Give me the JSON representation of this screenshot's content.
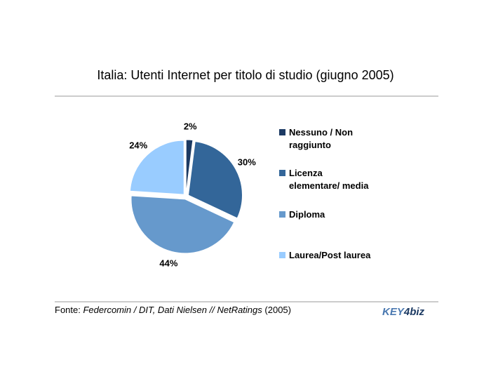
{
  "chart_data": {
    "type": "pie",
    "title": "Italia: Utenti Internet per titolo di studio (giugno 2005)",
    "categories": [
      "Nessuno / Non raggiunto",
      "Licenza elementare/ media",
      "Diploma",
      "Laurea/Post laurea"
    ],
    "values": [
      2,
      30,
      44,
      24
    ],
    "value_labels": [
      "2%",
      "30%",
      "44%",
      "24%"
    ],
    "colors": [
      "#1c3a63",
      "#336699",
      "#6699cc",
      "#99ccff"
    ],
    "legend": "right",
    "source": {
      "prefix": "Fonte:",
      "italic": "Federcomin / DIT, Dati Nielsen // NetRatings",
      "suffix": "(2005)"
    },
    "logo": [
      "KEY",
      "4",
      "biz"
    ]
  }
}
